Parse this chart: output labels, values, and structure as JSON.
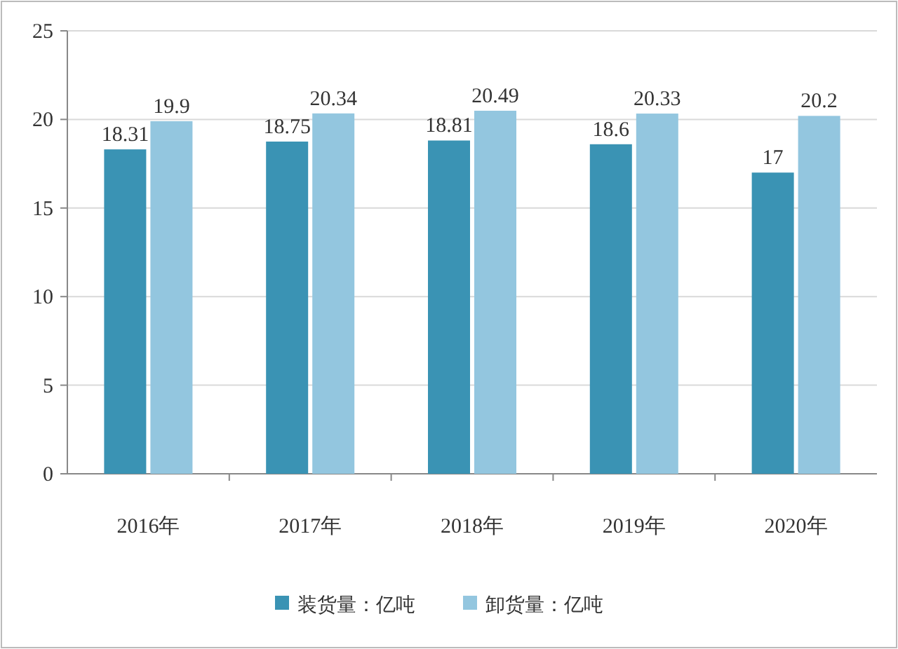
{
  "chart_data": {
    "type": "bar",
    "categories": [
      "2016年",
      "2017年",
      "2018年",
      "2019年",
      "2020年"
    ],
    "series": [
      {
        "name": "装货量：亿吨",
        "color": "#3a93b4",
        "values": [
          18.31,
          18.75,
          18.81,
          18.6,
          17
        ]
      },
      {
        "name": "卸货量：亿吨",
        "color": "#93c6df",
        "values": [
          19.9,
          20.34,
          20.49,
          20.33,
          20.2
        ]
      }
    ],
    "ylim": [
      0,
      25
    ],
    "yticks": [
      0,
      5,
      10,
      15,
      20,
      25
    ],
    "grid": "y",
    "legend": "bottom",
    "data_labels": true
  }
}
